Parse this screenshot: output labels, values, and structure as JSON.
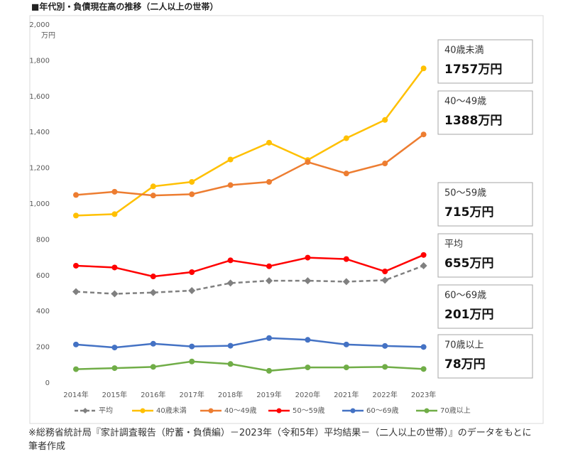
{
  "chart_data": {
    "type": "line",
    "title": "■年代別・負債現在高の推移（二人以上の世帯）",
    "y_unit": "万円",
    "categories": [
      "2014年",
      "2015年",
      "2016年",
      "2017年",
      "2018年",
      "2019年",
      "2020年",
      "2021年",
      "2022年",
      "2023年"
    ],
    "series": [
      {
        "name": "平均",
        "color": "#808080",
        "dash": true,
        "marker": "diamond",
        "values": [
          510,
          498,
          505,
          516,
          558,
          571,
          571,
          566,
          574,
          655
        ]
      },
      {
        "name": "40歳未満",
        "color": "#ffc000",
        "dash": false,
        "marker": "circle",
        "values": [
          935,
          943,
          1098,
          1123,
          1248,
          1342,
          1245,
          1367,
          1469,
          1757
        ]
      },
      {
        "name": "40～49歳",
        "color": "#ed7d31",
        "dash": false,
        "marker": "circle",
        "values": [
          1050,
          1068,
          1047,
          1054,
          1105,
          1123,
          1234,
          1170,
          1226,
          1388
        ]
      },
      {
        "name": "50～59歳",
        "color": "#ff0000",
        "dash": false,
        "marker": "circle",
        "values": [
          655,
          645,
          595,
          619,
          685,
          652,
          700,
          692,
          623,
          715
        ]
      },
      {
        "name": "60～69歳",
        "color": "#4472c4",
        "dash": false,
        "marker": "circle",
        "values": [
          215,
          198,
          219,
          204,
          208,
          251,
          241,
          215,
          207,
          201
        ]
      },
      {
        "name": "70歳以上",
        "color": "#70ad47",
        "dash": false,
        "marker": "circle",
        "values": [
          77,
          83,
          90,
          120,
          106,
          68,
          87,
          87,
          90,
          78
        ]
      }
    ],
    "ylim": [
      0,
      2000
    ],
    "yticks": [
      0,
      200,
      400,
      600,
      800,
      {
        "value": 1000,
        "label": "1,000"
      },
      {
        "value": 1200,
        "label": "1,200"
      },
      {
        "value": 1400,
        "label": "1,400"
      },
      {
        "value": 1600,
        "label": "1,600"
      },
      {
        "value": 1800,
        "label": "1,800"
      },
      {
        "value": 2000,
        "label": "2,000"
      }
    ],
    "grid": false,
    "legend": "bottom",
    "annotations": [
      {
        "label": "40歳未満",
        "text": "1757万円"
      },
      {
        "label": "40～49歳",
        "text": "1388万円"
      },
      {
        "label": "50～59歳",
        "text": "715万円"
      },
      {
        "label": "平均",
        "text": "655万円"
      },
      {
        "label": "60～69歳",
        "text": "201万円"
      },
      {
        "label": "70歳以上",
        "text": "78万円"
      }
    ],
    "source": "※総務省統計局『家計調査報告（貯蓄・負債編）－2023年（令和5年）平均結果－（二人以上の世帯）』のデータをもとに筆者作成"
  }
}
